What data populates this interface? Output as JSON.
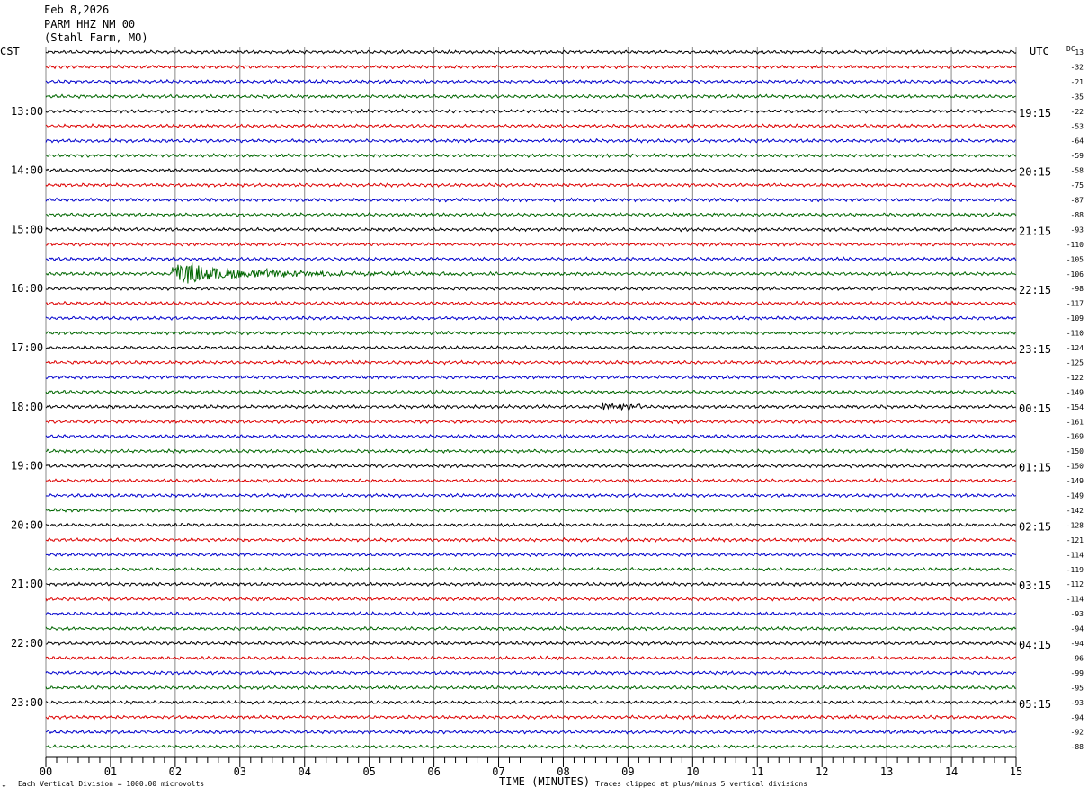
{
  "header": {
    "date": "Feb 8,2026",
    "station": "PARM HHZ NM 00",
    "location": "(Stahl Farm, MO)"
  },
  "left_tz": "CST",
  "right_tz": "UTC",
  "dc_label": "DC",
  "colors": {
    "cycle": [
      "#000000",
      "#dd0000",
      "#0000cc",
      "#006600"
    ],
    "grid": "#888888"
  },
  "chart_data": {
    "type": "line",
    "title": "PARM HHZ NM 00",
    "xlabel": "TIME (MINUTES)",
    "x_ticks": [
      "00",
      "01",
      "02",
      "03",
      "04",
      "05",
      "06",
      "07",
      "08",
      "09",
      "10",
      "11",
      "12",
      "13",
      "14",
      "15"
    ],
    "xlim": [
      0,
      15
    ],
    "rows_per_hour": 4,
    "row_count": 48,
    "left_hour_labels": [
      "13:00",
      "14:00",
      "15:00",
      "16:00",
      "17:00",
      "18:00",
      "19:00",
      "20:00",
      "21:00",
      "22:00",
      "23:00"
    ],
    "right_hour_labels": [
      "19:15",
      "20:15",
      "21:15",
      "22:15",
      "23:15",
      "00:15",
      "01:15",
      "02:15",
      "03:15",
      "04:15",
      "05:15"
    ],
    "dc_offsets": [
      13,
      -32,
      -21,
      -35,
      -22,
      -53,
      -64,
      -59,
      -58,
      -75,
      -87,
      -88,
      -93,
      -110,
      -105,
      -106,
      -98,
      -117,
      -109,
      -110,
      -124,
      -125,
      -122,
      -149,
      -154,
      -161,
      -169,
      -150,
      -150,
      -149,
      -149,
      -142,
      -128,
      -121,
      -114,
      -119,
      -112,
      -114,
      -93,
      -94,
      -94,
      -96,
      -99,
      -95,
      -93,
      -94,
      -92,
      -88
    ],
    "events": [
      {
        "row": 15,
        "start_min": 1.95,
        "end_min": 8.2,
        "peak_divisions": 1.2,
        "note": ""
      },
      {
        "row": 24,
        "start_min": 8.6,
        "end_min": 9.2,
        "peak_divisions": 0.35,
        "note": ""
      }
    ]
  },
  "footer": {
    "scale": "Each Vertical Division = 1000.00 microvolts",
    "clip": "Traces clipped at plus/minus 5 vertical divisions"
  }
}
